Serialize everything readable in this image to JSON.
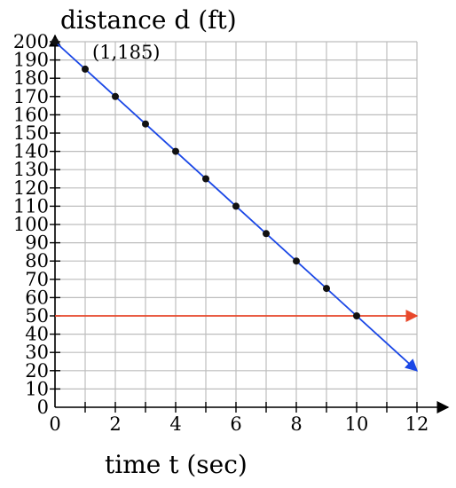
{
  "chart_data": {
    "type": "line",
    "xlabel": "time t (sec)",
    "ylabel": "distance d (ft)",
    "xlim": [
      0,
      12
    ],
    "ylim": [
      0,
      200
    ],
    "x_ticks": [
      0,
      2,
      4,
      6,
      8,
      10,
      12
    ],
    "y_ticks": [
      0,
      10,
      20,
      30,
      40,
      50,
      60,
      70,
      80,
      90,
      100,
      110,
      120,
      130,
      140,
      150,
      160,
      170,
      180,
      190,
      200
    ],
    "grid": true,
    "series": [
      {
        "color": "#1a47e6",
        "line": {
          "x": [
            0,
            12
          ],
          "y": [
            200,
            20
          ]
        },
        "arrow_at_end": true
      },
      {
        "color": "#e8482b",
        "line": {
          "x": [
            0,
            12
          ],
          "y": [
            50,
            50
          ]
        },
        "arrow_at_end": true
      }
    ],
    "points": {
      "x": [
        0,
        1,
        2,
        3,
        4,
        5,
        6,
        7,
        8,
        9,
        10
      ],
      "y": [
        200,
        185,
        170,
        155,
        140,
        125,
        110,
        95,
        80,
        65,
        50
      ]
    },
    "annotations": [
      {
        "text": "(1,185)",
        "x": 1,
        "y": 185
      }
    ]
  }
}
